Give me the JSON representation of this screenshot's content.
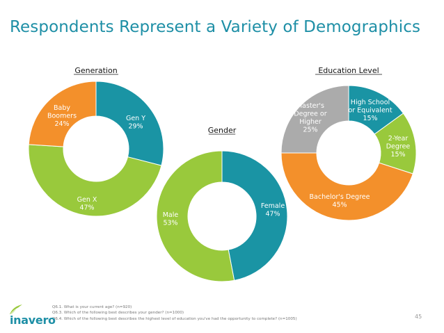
{
  "page": {
    "title": "Respondents Represent a Variety of Demographics",
    "page_number": "45",
    "footnotes": [
      "Q6.1. What is your current age? (n=920)",
      "Q6.3. Which of the following best describes your gender? (n=1000)",
      "Q6.4. Which of the following best describes the highest level of education you've had the opportunity to complete? (n=1005)"
    ],
    "logo_text": "inavero"
  },
  "colors": {
    "teal": "#1a94a4",
    "green": "#99c93c",
    "orange": "#f3902b",
    "gray": "#ababab",
    "title": "#1e8fa6"
  },
  "chart_data": [
    {
      "type": "pie",
      "donut": true,
      "title": "Generation",
      "slices": [
        {
          "label": "Gen Y",
          "value": 29,
          "display": "29%",
          "color": "#1a94a4"
        },
        {
          "label": "Gen X",
          "value": 47,
          "display": "47%",
          "color": "#99c93c"
        },
        {
          "label": "Baby Boomers",
          "value": 24,
          "display": "24%",
          "color": "#f3902b"
        }
      ]
    },
    {
      "type": "pie",
      "donut": true,
      "title": "Gender",
      "slices": [
        {
          "label": "Female",
          "value": 47,
          "display": "47%",
          "color": "#1a94a4"
        },
        {
          "label": "Male",
          "value": 53,
          "display": "53%",
          "color": "#99c93c"
        }
      ]
    },
    {
      "type": "pie",
      "donut": true,
      "title": "Education Level",
      "slices": [
        {
          "label": "High School or Equivalent",
          "value": 15,
          "display": "15%",
          "color": "#1a94a4"
        },
        {
          "label": "2-Year Degree",
          "value": 15,
          "display": "15%",
          "color": "#99c93c"
        },
        {
          "label": "Bachelor's Degree",
          "value": 45,
          "display": "45%",
          "color": "#f3902b"
        },
        {
          "label": "Master's Degree or Higher",
          "value": 25,
          "display": "25%",
          "color": "#ababab"
        }
      ]
    }
  ]
}
